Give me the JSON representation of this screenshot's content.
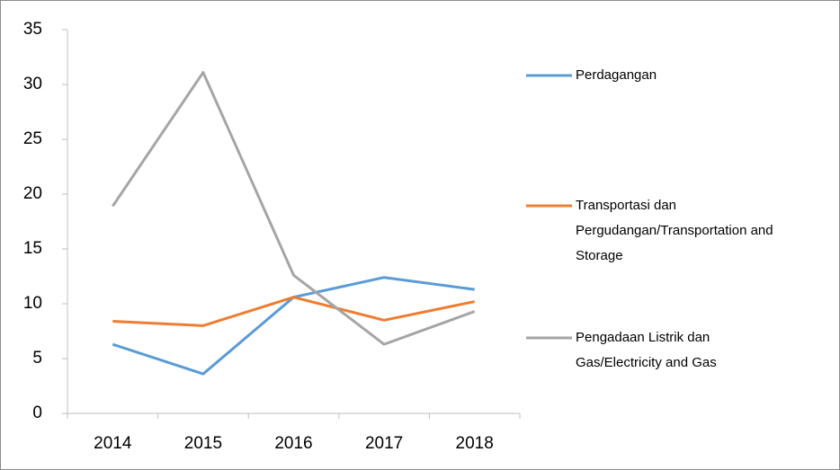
{
  "chart_data": {
    "type": "line",
    "categories": [
      "2014",
      "2015",
      "2016",
      "2017",
      "2018"
    ],
    "series": [
      {
        "name": "Perdagangan",
        "color": "#5b9bd5",
        "values": [
          6.3,
          3.6,
          10.6,
          12.4,
          11.3
        ]
      },
      {
        "name": "Transportasi dan Pergudangan/Transportation and Storage",
        "color": "#ed7d31",
        "values": [
          8.4,
          8.0,
          10.6,
          8.5,
          10.2
        ]
      },
      {
        "name": "Pengadaan Listrik dan Gas/Electricity and Gas",
        "color": "#a5a5a5",
        "values": [
          18.9,
          31.1,
          12.6,
          6.3,
          9.3
        ]
      }
    ],
    "ylim": [
      0,
      35
    ],
    "yticks": [
      0,
      5,
      10,
      15,
      20,
      25,
      30,
      35
    ],
    "grid": false,
    "legend": "right"
  }
}
